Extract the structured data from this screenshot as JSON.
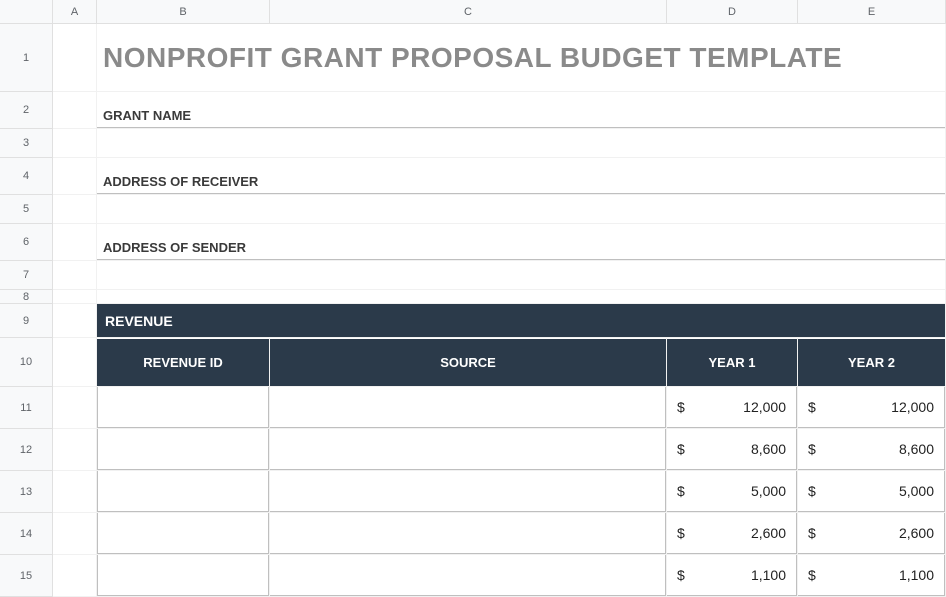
{
  "columns": [
    "A",
    "B",
    "C",
    "D",
    "E"
  ],
  "rows": [
    "1",
    "2",
    "3",
    "4",
    "5",
    "6",
    "7",
    "8",
    "9",
    "10",
    "11",
    "12",
    "13",
    "14",
    "15"
  ],
  "title": "NONPROFIT GRANT PROPOSAL BUDGET TEMPLATE",
  "labels": {
    "grant_name": "GRANT NAME",
    "address_receiver": "ADDRESS OF RECEIVER",
    "address_sender": "ADDRESS OF SENDER"
  },
  "section": {
    "revenue": "REVENUE"
  },
  "table": {
    "headers": {
      "id": "REVENUE ID",
      "source": "SOURCE",
      "y1": "YEAR 1",
      "y2": "YEAR 2"
    },
    "currency": "$",
    "rows": [
      {
        "id": "",
        "source": "",
        "y1": "12,000",
        "y2": "12,000"
      },
      {
        "id": "",
        "source": "",
        "y1": "8,600",
        "y2": "8,600"
      },
      {
        "id": "",
        "source": "",
        "y1": "5,000",
        "y2": "5,000"
      },
      {
        "id": "",
        "source": "",
        "y1": "2,600",
        "y2": "2,600"
      },
      {
        "id": "",
        "source": "",
        "y1": "1,100",
        "y2": "1,100"
      }
    ]
  },
  "style": {
    "title_color": "#8a8a8a",
    "section_bg": "#2b3a4a",
    "section_fg": "#ffffff",
    "border_color": "#bfbfbf",
    "header_bg": "#f8f9fa",
    "header_fg": "#5f6368",
    "text_color": "#222222",
    "title_fontsize": 28,
    "label_fontsize": 13,
    "section_fontsize": 14,
    "data_fontsize": 14
  }
}
